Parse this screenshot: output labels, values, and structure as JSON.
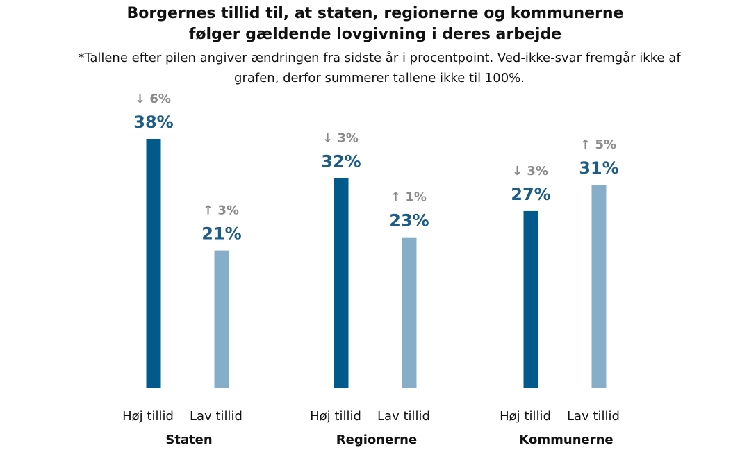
{
  "chart_data": {
    "type": "bar",
    "title_lines": [
      "Borgernes tillid til, at staten, regionerne og kommunerne",
      "følger gældende lovgivning i deres arbejde"
    ],
    "subtitle_lines": [
      "*Tallene efter pilen angiver ændringen fra sidste år i procentpoint. Ved-ikke-svar fremgår ikke af",
      "grafen, derfor summerer tallene ikke til 100%."
    ],
    "ylim": [
      0,
      38
    ],
    "colors": {
      "høj": "#005a8c",
      "lav": "#86aec8",
      "value_text": "#1d5c87",
      "change_text": "#8a8a8a"
    },
    "groups": [
      {
        "name": "Staten",
        "bars": [
          {
            "category": "Høj tillid",
            "value": 38,
            "value_label": "38%",
            "change_arrow": "↓",
            "change_label": "6%",
            "color_key": "høj"
          },
          {
            "category": "Lav tillid",
            "value": 21,
            "value_label": "21%",
            "change_arrow": "↑",
            "change_label": "3%",
            "color_key": "lav"
          }
        ]
      },
      {
        "name": "Regionerne",
        "bars": [
          {
            "category": "Høj tillid",
            "value": 32,
            "value_label": "32%",
            "change_arrow": "↓",
            "change_label": "3%",
            "color_key": "høj"
          },
          {
            "category": "Lav tillid",
            "value": 23,
            "value_label": "23%",
            "change_arrow": "↑",
            "change_label": "1%",
            "color_key": "lav"
          }
        ]
      },
      {
        "name": "Kommunerne",
        "bars": [
          {
            "category": "Høj tillid",
            "value": 27,
            "value_label": "27%",
            "change_arrow": "↓",
            "change_label": "3%",
            "color_key": "høj"
          },
          {
            "category": "Lav tillid",
            "value": 31,
            "value_label": "31%",
            "change_arrow": "↑",
            "change_label": "5%",
            "color_key": "lav"
          }
        ]
      }
    ]
  }
}
